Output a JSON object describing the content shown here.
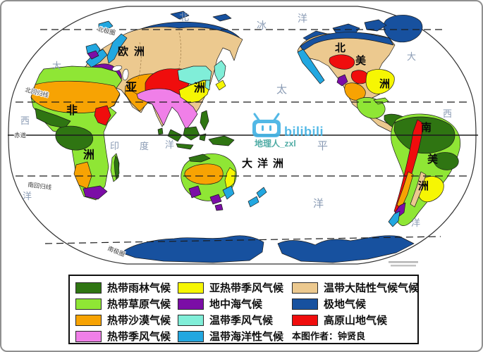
{
  "map": {
    "ocean_labels": {
      "arctic": [
        "北",
        "冰",
        "洋"
      ],
      "pacific": [
        "太",
        "平",
        "洋"
      ],
      "indian": [
        "印",
        "度",
        "洋"
      ],
      "atlantic_left": [
        "大",
        "西",
        "洋"
      ],
      "atlantic_right": [
        "大",
        "西",
        "洋"
      ]
    },
    "continent_labels": {
      "europe": "欧洲",
      "asia": [
        "亚",
        "洲"
      ],
      "africa": [
        "非",
        "洲"
      ],
      "north_america": [
        "北",
        "美",
        "洲"
      ],
      "south_america": [
        "南",
        "美",
        "洲"
      ],
      "oceania": "大洋洲"
    },
    "latitude_labels": {
      "arctic_circle": "北极圈",
      "tropic_of_cancer": "北回归线",
      "equator": "赤道",
      "tropic_of_capricorn": "南回归线",
      "antarctic_circle": "南极圈"
    },
    "watermark": {
      "brand": "bilibili",
      "username": "地理人_zxl",
      "brand_color": "#44B3E4",
      "username_color": "#3FA49D"
    }
  },
  "legend": {
    "items": [
      {
        "key": "rainforest",
        "label": "热带雨林气候",
        "color": "#2F7512"
      },
      {
        "key": "subtrop",
        "label": "亚热带季风气候",
        "color": "#F6F603"
      },
      {
        "key": "continental",
        "label": "温带大陆性气候气候",
        "color": "#ECC98F"
      },
      {
        "key": "savanna",
        "label": "热带草原气候",
        "color": "#8FE635"
      },
      {
        "key": "mediterranean",
        "label": "地中海气候",
        "color": "#7B0DA6"
      },
      {
        "key": "polar",
        "label": "极地气候",
        "color": "#17519F"
      },
      {
        "key": "desert",
        "label": "热带沙漠气候",
        "color": "#F7A303"
      },
      {
        "key": "temp_monsoon",
        "label": "温带季风气候",
        "color": "#80EED8"
      },
      {
        "key": "plateau",
        "label": "高原山地气候",
        "color": "#F00D0D"
      },
      {
        "key": "trop_monsoon",
        "label": "热带季风气候",
        "color": "#F07FE8"
      },
      {
        "key": "oceanic",
        "label": "温带海洋性气候",
        "color": "#22A7E0"
      }
    ],
    "author": "本图作者：钟贤良"
  }
}
